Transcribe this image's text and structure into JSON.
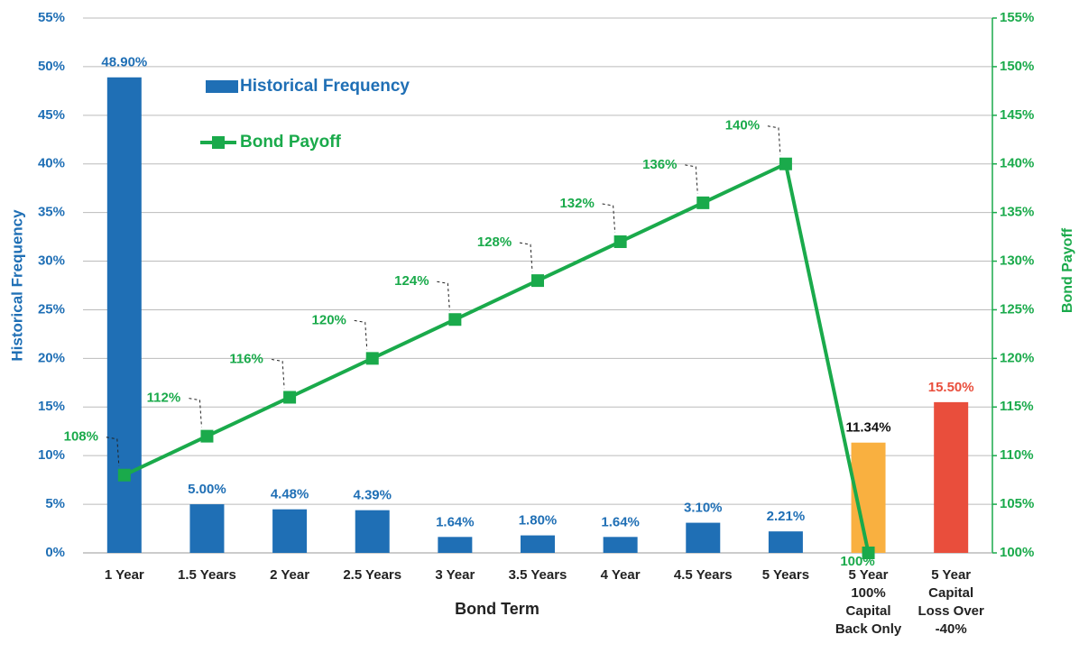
{
  "chart_data": {
    "type": "bar-line",
    "x_label": "Bond Term",
    "y_label": "Historical Frequency",
    "y2_label": "Bond Payoff",
    "categories": [
      "1 Year",
      "1.5 Years",
      "2 Year",
      "2.5 Years",
      "3 Year",
      "3.5 Years",
      "4 Year",
      "4.5 Years",
      "5 Years",
      "5 Year 100% Capital Back Only",
      "5 Year Capital Loss Over -40%"
    ],
    "series": [
      {
        "name": "Historical Frequency",
        "type": "bar",
        "color": "#1f6fb5",
        "colors": [
          "#1f6fb5",
          "#1f6fb5",
          "#1f6fb5",
          "#1f6fb5",
          "#1f6fb5",
          "#1f6fb5",
          "#1f6fb5",
          "#1f6fb5",
          "#1f6fb5",
          "#f9b040",
          "#e94e3c"
        ],
        "label_colors": [
          "#1f6fb5",
          "#1f6fb5",
          "#1f6fb5",
          "#1f6fb5",
          "#1f6fb5",
          "#1f6fb5",
          "#1f6fb5",
          "#1f6fb5",
          "#1f6fb5",
          "#111111",
          "#e94e3c"
        ],
        "values": [
          48.9,
          5,
          4.48,
          4.39,
          1.64,
          1.8,
          1.64,
          3.1,
          2.21,
          11.34,
          15.5
        ],
        "value_labels": [
          "48.90%",
          "5.00%",
          "4.48%",
          "4.39%",
          "1.64%",
          "1.80%",
          "1.64%",
          "3.10%",
          "2.21%",
          "11.34%",
          "15.50%"
        ]
      },
      {
        "name": "Bond Payoff",
        "type": "line",
        "axis": "y2",
        "color": "#1aaa4b",
        "values": [
          108,
          112,
          116,
          120,
          124,
          128,
          132,
          136,
          140,
          100,
          null
        ],
        "value_labels": [
          "108%",
          "112%",
          "116%",
          "120%",
          "124%",
          "128%",
          "132%",
          "136%",
          "140%",
          "100%",
          null
        ]
      }
    ],
    "ylim": [
      0,
      55
    ],
    "yticks": [
      {
        "value": 0,
        "label": "0%"
      },
      {
        "value": 5,
        "label": "5%"
      },
      {
        "value": 10,
        "label": "10%"
      },
      {
        "value": 15,
        "label": "15%"
      },
      {
        "value": 20,
        "label": "20%"
      },
      {
        "value": 25,
        "label": "25%"
      },
      {
        "value": 30,
        "label": "30%"
      },
      {
        "value": 35,
        "label": "35%"
      },
      {
        "value": 40,
        "label": "40%"
      },
      {
        "value": 45,
        "label": "45%"
      },
      {
        "value": 50,
        "label": "50%"
      },
      {
        "value": 55,
        "label": "55%"
      }
    ],
    "y2lim": [
      100,
      155
    ],
    "y2ticks": [
      {
        "value": 100,
        "label": "100%"
      },
      {
        "value": 105,
        "label": "105%"
      },
      {
        "value": 110,
        "label": "110%"
      },
      {
        "value": 115,
        "label": "115%"
      },
      {
        "value": 120,
        "label": "120%"
      },
      {
        "value": 125,
        "label": "125%"
      },
      {
        "value": 130,
        "label": "130%"
      },
      {
        "value": 135,
        "label": "135%"
      },
      {
        "value": 140,
        "label": "140%"
      },
      {
        "value": 145,
        "label": "145%"
      },
      {
        "value": 150,
        "label": "150%"
      },
      {
        "value": 155,
        "label": "155%"
      }
    ],
    "grid": true,
    "legend": "upper left"
  }
}
